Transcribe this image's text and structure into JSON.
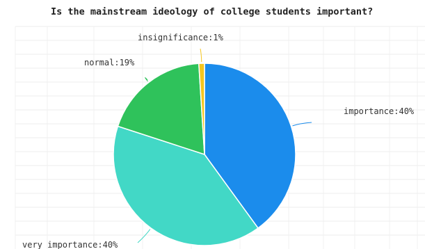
{
  "chart_data": {
    "type": "pie",
    "title": "Is the mainstream ideology of college students important?",
    "slices": [
      {
        "label": "importance:40%",
        "value": 40,
        "color": "#1b8cec"
      },
      {
        "label": "very importance:40%",
        "value": 40,
        "color": "#42d8c6"
      },
      {
        "label": "normal:19%",
        "value": 19,
        "color": "#2fc25b"
      },
      {
        "label": "insignificance:1%",
        "value": 1,
        "color": "#f5c61f"
      }
    ],
    "legend": "none"
  }
}
